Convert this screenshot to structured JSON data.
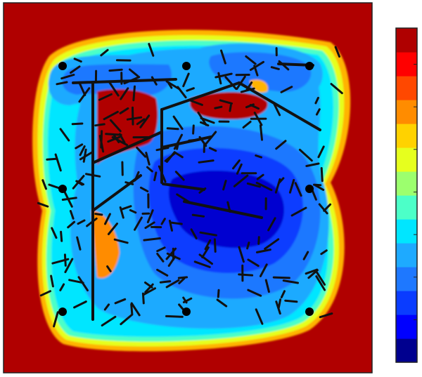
{
  "figure": {
    "description_free": true,
    "colormap": [
      "#00008f",
      "#0000ff",
      "#0a3cff",
      "#1e78ff",
      "#1eaaff",
      "#00e6ff",
      "#4cffc8",
      "#9cff6e",
      "#e6ff1e",
      "#ffd200",
      "#ff8c00",
      "#ff4800",
      "#ff0000",
      "#af0000"
    ],
    "colors": {
      "background_red": "#b00000",
      "frame": "#222222",
      "segment": "#111111",
      "node": "#000000"
    },
    "colorbar": {
      "levels": 14,
      "tick_marks": 7,
      "labels": []
    }
  }
}
